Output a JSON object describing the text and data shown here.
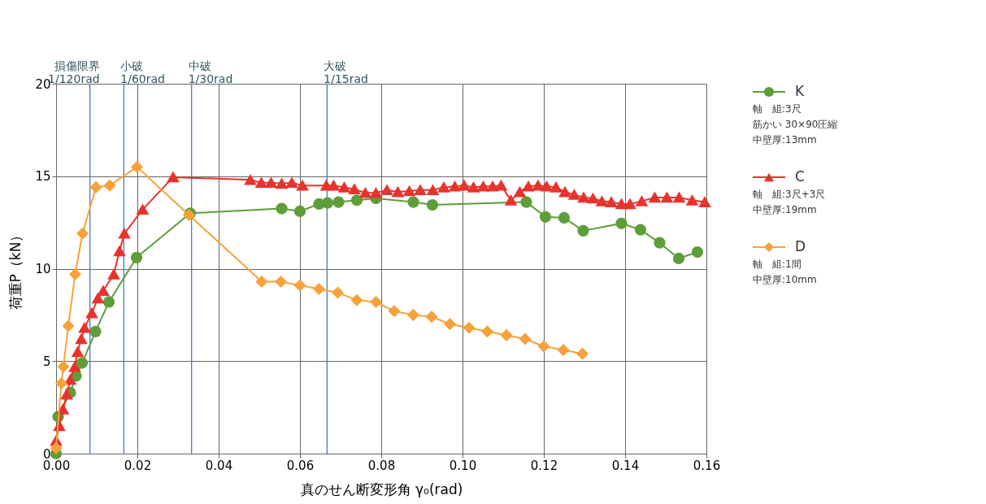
{
  "chart_data": {
    "type": "line",
    "xlabel": "真のせん断変形角 γ₀(rad)",
    "ylabel": "荷重P（kN）",
    "xlim": [
      0,
      0.16
    ],
    "ylim": [
      0,
      20
    ],
    "xticks": [
      {
        "value": 0,
        "label": "0.00"
      },
      0.02,
      0.04,
      0.06,
      0.08,
      {
        "value": 0.1,
        "label": "0.10"
      },
      0.12,
      0.14,
      0.16
    ],
    "yticks": [
      0,
      5,
      10,
      15,
      20
    ],
    "grid": true,
    "legend": "right",
    "series": [
      {
        "name": "K",
        "color": "#5e9e3a",
        "marker": "circle",
        "x": [
          0,
          0.0005,
          0.0035,
          0.0049,
          0.0064,
          0.0097,
          0.013,
          0.0198,
          0.033,
          0.0555,
          0.06,
          0.0647,
          0.0668,
          0.0695,
          0.074,
          0.0787,
          0.0879,
          0.0926,
          0.1157,
          0.1204,
          0.125,
          0.1297,
          0.1391,
          0.1438,
          0.1485,
          0.1532,
          0.1578
        ],
        "values": [
          0,
          2.0,
          3.3,
          4.2,
          4.9,
          6.6,
          8.2,
          10.6,
          13.0,
          13.25,
          13.1,
          13.5,
          13.55,
          13.6,
          13.7,
          13.8,
          13.6,
          13.45,
          13.6,
          12.8,
          12.75,
          12.05,
          12.45,
          12.1,
          11.4,
          10.55,
          10.9
        ]
      },
      {
        "name": "C",
        "color": "#e8332c",
        "marker": "triangle",
        "x": [
          0,
          0.0008,
          0.0017,
          0.0026,
          0.0035,
          0.0046,
          0.0053,
          0.0062,
          0.007,
          0.0088,
          0.0103,
          0.0116,
          0.0142,
          0.0156,
          0.0168,
          0.0213,
          0.0288,
          0.0478,
          0.0505,
          0.0529,
          0.0555,
          0.058,
          0.0606,
          0.0665,
          0.0683,
          0.0709,
          0.0734,
          0.0761,
          0.0787,
          0.0814,
          0.0841,
          0.0869,
          0.0896,
          0.0927,
          0.0954,
          0.0981,
          0.1004,
          0.1027,
          0.1051,
          0.1074,
          0.1095,
          0.1119,
          0.1141,
          0.1162,
          0.1186,
          0.1207,
          0.123,
          0.1252,
          0.1275,
          0.1298,
          0.1321,
          0.1343,
          0.1366,
          0.1391,
          0.1412,
          0.1441,
          0.1473,
          0.1503,
          0.1533,
          0.1565,
          0.1596
        ],
        "values": [
          0.7,
          1.5,
          2.4,
          3.2,
          4.0,
          4.7,
          5.5,
          6.2,
          6.8,
          7.6,
          8.4,
          8.8,
          9.7,
          10.95,
          11.9,
          13.2,
          14.95,
          14.8,
          14.65,
          14.65,
          14.6,
          14.65,
          14.5,
          14.5,
          14.5,
          14.4,
          14.3,
          14.1,
          14.1,
          14.25,
          14.15,
          14.2,
          14.25,
          14.25,
          14.4,
          14.45,
          14.5,
          14.4,
          14.45,
          14.45,
          14.5,
          13.7,
          14.15,
          14.45,
          14.5,
          14.45,
          14.4,
          14.15,
          14.0,
          13.85,
          13.8,
          13.65,
          13.6,
          13.5,
          13.5,
          13.65,
          13.85,
          13.85,
          13.85,
          13.7,
          13.6
        ]
      },
      {
        "name": "D",
        "color": "#f7a23a",
        "marker": "diamond",
        "x": [
          0,
          0.0013,
          0.0018,
          0.003,
          0.0047,
          0.0065,
          0.0098,
          0.0132,
          0.0199,
          0.0327,
          0.0506,
          0.0553,
          0.06,
          0.0647,
          0.0693,
          0.074,
          0.0787,
          0.0832,
          0.0879,
          0.0924,
          0.0969,
          0.1016,
          0.1061,
          0.1108,
          0.1154,
          0.12,
          0.1248,
          0.1295
        ],
        "values": [
          0.3,
          3.8,
          4.7,
          6.9,
          9.7,
          11.9,
          14.4,
          14.5,
          15.5,
          12.9,
          9.3,
          9.3,
          9.1,
          8.9,
          8.7,
          8.3,
          8.2,
          7.7,
          7.5,
          7.4,
          7.0,
          6.8,
          6.6,
          6.4,
          6.2,
          5.8,
          5.6,
          5.4
        ]
      }
    ],
    "ref_lines": [
      {
        "axis": "x",
        "value": 0.008333,
        "label": "損傷限界\n1/120rad",
        "color": "#4a78c8"
      },
      {
        "axis": "x",
        "value": 0.016667,
        "label": "小破\n1/60rad",
        "color": "#4a78c8"
      },
      {
        "axis": "x",
        "value": 0.033333,
        "label": "中破\n1/30rad",
        "color": "#4a78c8"
      },
      {
        "axis": "x",
        "value": 0.066667,
        "label": "大破\n1/15rad",
        "color": "#4a78c8"
      }
    ],
    "annotations": [
      "軸　組:3尺",
      "筋かい 30×90圧縮",
      "中壁厚:13mm",
      "軸　組:3尺+3尺",
      "中壁厚:19mm",
      "軸　組:1間",
      "中壁厚:10mm"
    ]
  }
}
